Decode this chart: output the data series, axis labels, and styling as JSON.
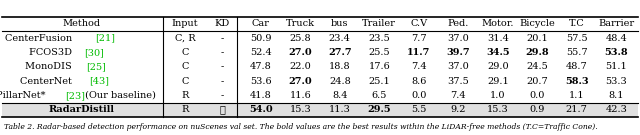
{
  "columns": [
    "Method",
    "Input",
    "KD",
    "Car",
    "Truck",
    "bus",
    "Trailer",
    "C.V",
    "Ped.",
    "Motor.",
    "Bicycle",
    "T.C",
    "Barrier"
  ],
  "rows": [
    {
      "method": "CenterFusion [21]",
      "method_ref": "[21]",
      "input": "C, R",
      "kd": "-",
      "values": [
        "50.9",
        "25.8",
        "23.4",
        "23.5",
        "7.7",
        "37.0",
        "31.4",
        "20.1",
        "57.5",
        "48.4"
      ],
      "bold_vals": [],
      "is_radar": false
    },
    {
      "method": "FCOS3D [30]",
      "method_ref": "[30]",
      "input": "C",
      "kd": "-",
      "values": [
        "52.4",
        "27.0",
        "27.7",
        "25.5",
        "11.7",
        "39.7",
        "34.5",
        "29.8",
        "55.7",
        "53.8"
      ],
      "bold_vals": [
        1,
        2,
        4,
        5,
        6,
        7,
        9
      ],
      "is_radar": false
    },
    {
      "method": "MonoDIS [25]",
      "method_ref": "[25]",
      "input": "C",
      "kd": "-",
      "values": [
        "47.8",
        "22.0",
        "18.8",
        "17.6",
        "7.4",
        "37.0",
        "29.0",
        "24.5",
        "48.7",
        "51.1"
      ],
      "bold_vals": [],
      "is_radar": false
    },
    {
      "method": "CenterNet [43]",
      "method_ref": "[43]",
      "input": "C",
      "kd": "-",
      "values": [
        "53.6",
        "27.0",
        "24.8",
        "25.1",
        "8.6",
        "37.5",
        "29.1",
        "20.7",
        "58.3",
        "53.3"
      ],
      "bold_vals": [
        1,
        8
      ],
      "is_radar": false
    },
    {
      "method": "PillarNet* [23] (Our baseline)",
      "method_ref": "[23]",
      "input": "R",
      "kd": "-",
      "values": [
        "41.8",
        "11.6",
        "8.4",
        "6.5",
        "0.0",
        "7.4",
        "1.0",
        "0.0",
        "1.1",
        "8.1"
      ],
      "bold_vals": [],
      "is_radar": false
    },
    {
      "method": "RadarDistill",
      "method_ref": "",
      "input": "R",
      "kd": "✓",
      "values": [
        "54.0",
        "15.3",
        "11.3",
        "29.5",
        "5.5",
        "9.2",
        "15.3",
        "0.9",
        "21.7",
        "42.3"
      ],
      "bold_vals": [
        0,
        3
      ],
      "is_radar": true
    }
  ],
  "ref_color": "#00bb00",
  "caption": "Table 2. Radar-based detection performance on nuScenes val set. The bold values are the best results within the LiDAR-free methods (T.C=Traffic Cone).",
  "figsize": [
    6.4,
    1.35
  ],
  "dpi": 100,
  "fs": 7.0,
  "fs_caption": 5.5
}
